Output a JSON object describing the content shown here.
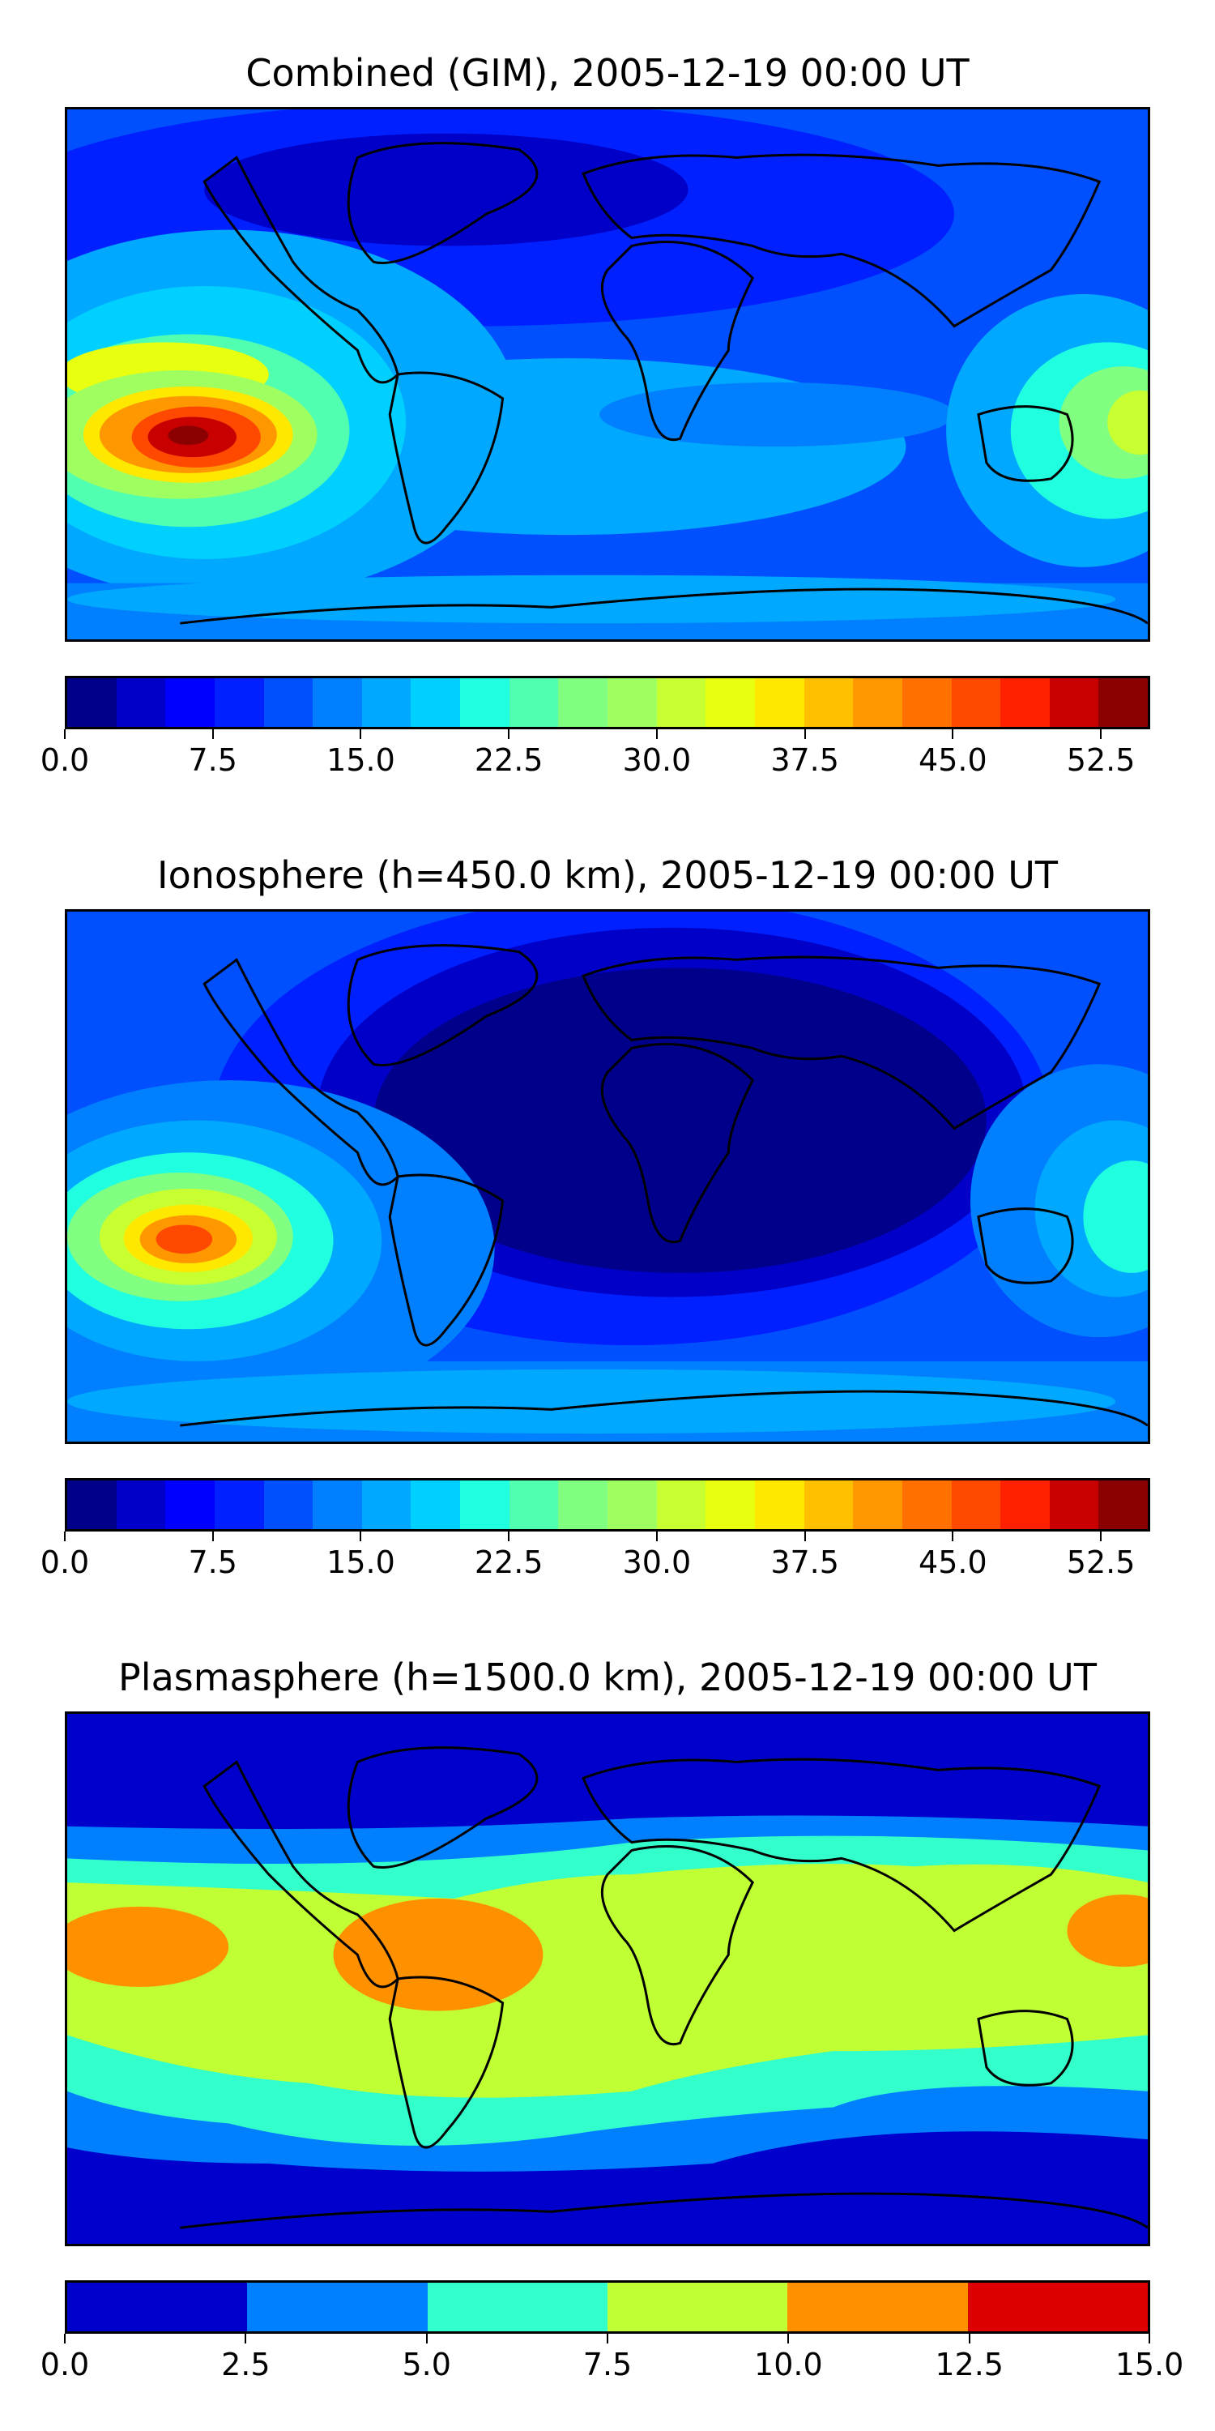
{
  "panels": [
    {
      "id": "combined",
      "title": "Combined (GIM), 2005-12-19 00:00 UT",
      "colorbar": {
        "colors": [
          "#00008b",
          "#0000c8",
          "#0000ff",
          "#0020ff",
          "#0050ff",
          "#0080ff",
          "#00a8ff",
          "#00d0ff",
          "#20ffe0",
          "#50ffb0",
          "#80ff80",
          "#a0ff60",
          "#c8ff30",
          "#e8ff10",
          "#ffe800",
          "#ffc000",
          "#ff9800",
          "#ff7000",
          "#ff4800",
          "#ff2000",
          "#c80000",
          "#8b0000"
        ],
        "ticks": [
          "0.0",
          "7.5",
          "15.0",
          "22.5",
          "30.0",
          "37.5",
          "45.0",
          "52.5"
        ],
        "min": 0,
        "max": 55
      }
    },
    {
      "id": "ionosphere",
      "title": "Ionosphere  (h=450.0 km), 2005-12-19 00:00 UT",
      "colorbar": {
        "colors": [
          "#00008b",
          "#0000c8",
          "#0000ff",
          "#0020ff",
          "#0050ff",
          "#0080ff",
          "#00a8ff",
          "#00d0ff",
          "#20ffe0",
          "#50ffb0",
          "#80ff80",
          "#a0ff60",
          "#c8ff30",
          "#e8ff10",
          "#ffe800",
          "#ffc000",
          "#ff9800",
          "#ff7000",
          "#ff4800",
          "#ff2000",
          "#c80000",
          "#8b0000"
        ],
        "ticks": [
          "0.0",
          "7.5",
          "15.0",
          "22.5",
          "30.0",
          "37.5",
          "45.0",
          "52.5"
        ],
        "min": 0,
        "max": 55
      }
    },
    {
      "id": "plasmasphere",
      "title": "Plasmasphere (h=1500.0 km), 2005-12-19 00:00 UT",
      "colorbar": {
        "colors": [
          "#0000cc",
          "#0080ff",
          "#33ffcc",
          "#c0ff33",
          "#ff9000",
          "#dd0000"
        ],
        "ticks": [
          "0.0",
          "2.5",
          "5.0",
          "7.5",
          "10.0",
          "12.5",
          "15.0"
        ],
        "min": 0,
        "max": 15
      }
    }
  ]
}
